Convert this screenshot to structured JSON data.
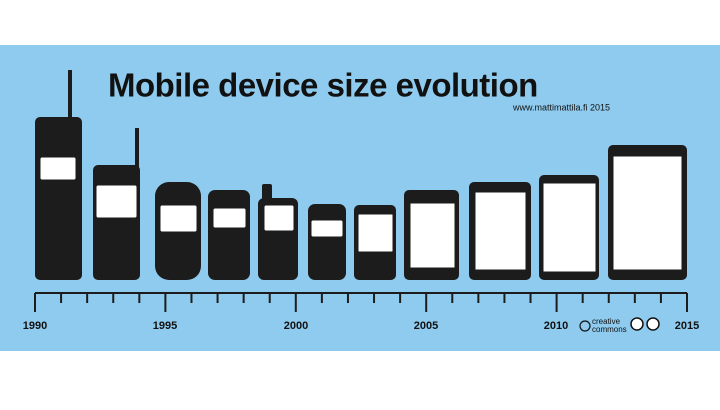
{
  "header": {
    "title": "Mobile device size evolution",
    "credit": "www.mattimattila.fi 2015"
  },
  "timeline": {
    "years": [
      "1990",
      "1995",
      "2000",
      "2005",
      "2010",
      "2015"
    ]
  },
  "license": {
    "line1": "creative",
    "line2": "commons"
  }
}
